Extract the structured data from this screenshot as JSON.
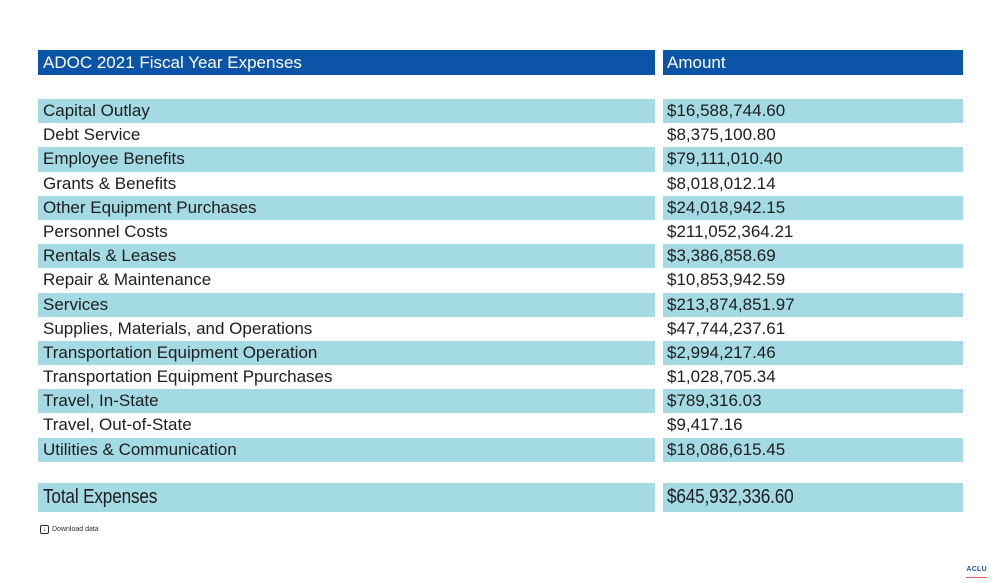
{
  "chart_data": {
    "type": "table",
    "title": "ADOC 2021 Fiscal Year Expenses",
    "amount_header": "Amount",
    "columns": [
      "ADOC 2021 Fiscal Year Expenses",
      "Amount"
    ],
    "rows": [
      {
        "label": "Capital Outlay",
        "amount": "$16,588,744.60"
      },
      {
        "label": "Debt Service",
        "amount": "$8,375,100.80"
      },
      {
        "label": "Employee Benefits",
        "amount": "$79,111,010.40"
      },
      {
        "label": "Grants & Benefits",
        "amount": "$8,018,012.14"
      },
      {
        "label": "Other Equipment Purchases",
        "amount": "$24,018,942.15"
      },
      {
        "label": "Personnel Costs",
        "amount": "$211,052,364.21"
      },
      {
        "label": "Rentals & Leases",
        "amount": "$3,386,858.69"
      },
      {
        "label": "Repair & Maintenance",
        "amount": "$10,853,942.59"
      },
      {
        "label": "Services",
        "amount": "$213,874,851.97"
      },
      {
        "label": "Supplies, Materials, and Operations",
        "amount": "$47,744,237.61"
      },
      {
        "label": "Transportation Equipment Operation",
        "amount": "$2,994,217.46"
      },
      {
        "label": "Transportation Equipment Ppurchases",
        "amount": "$1,028,705.34"
      },
      {
        "label": "Travel, In-State",
        "amount": "$789,316.03"
      },
      {
        "label": "Travel, Out-of-State",
        "amount": "$9,417.16"
      },
      {
        "label": "Utilities & Communication",
        "amount": "$18,086,615.45"
      }
    ],
    "total": {
      "label": "Total Expenses",
      "amount": "$645,932,336.60"
    },
    "layout_hints": {
      "striped": true,
      "first_row_highlighted": true
    }
  },
  "footer": {
    "download_label": "Download data",
    "download_icon": "download-icon",
    "logo_text": "ACLU"
  },
  "colors": {
    "header_bg": "#0B54A8",
    "row_highlight": "#A4DAE3",
    "text": "#1D1D1D",
    "logo_blue": "#1457A8",
    "logo_red": "#E05A5A"
  }
}
